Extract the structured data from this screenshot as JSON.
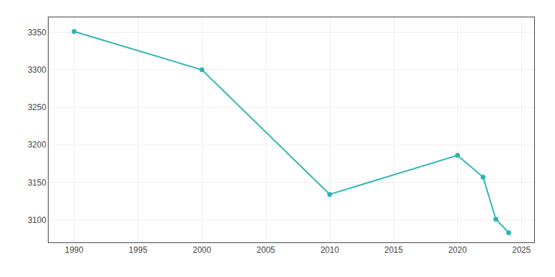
{
  "chart_data": {
    "type": "line",
    "x": [
      1990,
      2000,
      2010,
      2020,
      2022,
      2023,
      2024
    ],
    "values": [
      3351,
      3300,
      3134,
      3186,
      3157,
      3101,
      3083
    ],
    "color": "#2ab5b5",
    "marker": "circle",
    "xlim": [
      1988,
      2026
    ],
    "ylim": [
      3070,
      3370
    ],
    "xticks": [
      1990,
      1995,
      2000,
      2005,
      2010,
      2015,
      2020,
      2025
    ],
    "yticks": [
      3100,
      3150,
      3200,
      3250,
      3300,
      3350
    ],
    "grid": true
  }
}
